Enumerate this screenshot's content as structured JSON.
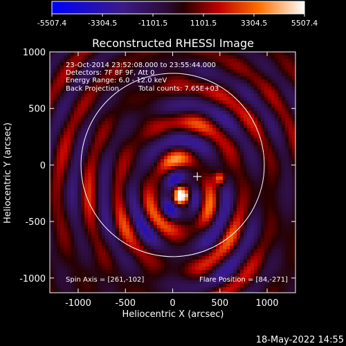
{
  "chart_data": {
    "type": "heatmap",
    "title": "Reconstructed RHESSI Image",
    "xlabel": "Heliocentric X (arcsec)",
    "ylabel": "Heliocentric Y (arcsec)",
    "xlim": [
      -1300,
      1300
    ],
    "ylim": [
      -1130,
      1000
    ],
    "x_ticks": [
      "-1000",
      "-500",
      "0",
      "500",
      "1000"
    ],
    "y_ticks": [
      "1000",
      "500",
      "0",
      "-500",
      "-1000"
    ],
    "x_tick_values": [
      -1000,
      -500,
      0,
      500,
      1000
    ],
    "y_tick_values": [
      1000,
      500,
      0,
      -500,
      -1000
    ],
    "colorbar": {
      "min": -5507.4,
      "max": 5507.4,
      "tick_labels": [
        "-5507.4",
        "-3304.5",
        "-1101.5",
        "1101.5",
        "3304.5",
        "5507.4"
      ],
      "tick_values": [
        -5507.4,
        -3304.5,
        -1101.5,
        1101.5,
        3304.5,
        5507.4
      ]
    },
    "annotations": [
      "23-Oct-2014 23:52:08.000 to 23:55:44.000",
      "Detectors: 7F 8F 9F, Att 0",
      "Energy Range: 6.0 - 12.0 keV",
      "Back Projection",
      "Total counts: 7.65E+03"
    ],
    "spin_axis": "Spin Axis = [261,-102]",
    "flare_position": "Flare Position = [84,-271]",
    "sun_center": [
      0,
      0
    ],
    "solar_radius_arcsec": 970,
    "flare_x": 84,
    "flare_y": -271,
    "secondary_source": [
      500,
      -120
    ],
    "plus_marker": [
      261,
      -102
    ],
    "grid": false
  },
  "footer": {
    "timestamp": "18-May-2022 14:55"
  }
}
